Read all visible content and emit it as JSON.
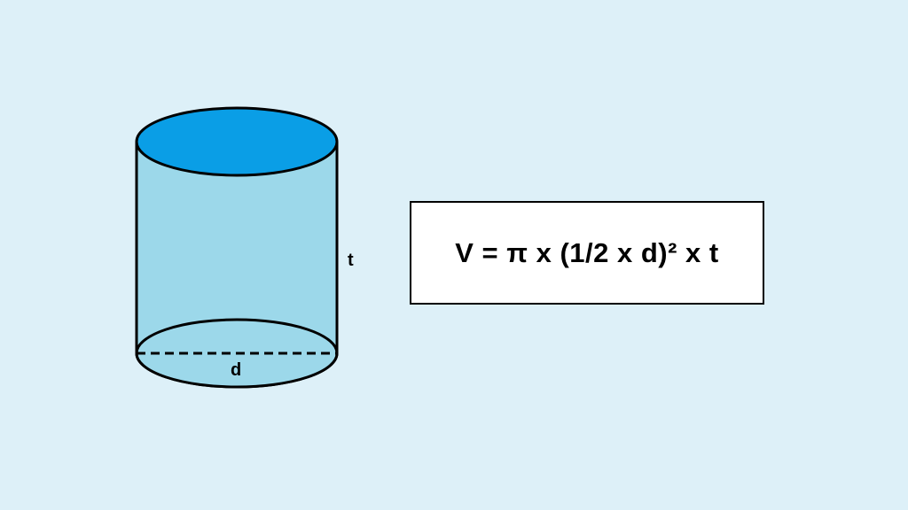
{
  "diagram": {
    "height_label": "t",
    "diameter_label": "d",
    "formula": "V = π x (1/2 x d)² x t"
  },
  "colors": {
    "background": "#ddf0f8",
    "cylinder_body": "#9cd8ea",
    "cylinder_caps": "#0a9ee6",
    "outline": "#000000",
    "formula_box": "#ffffff"
  }
}
